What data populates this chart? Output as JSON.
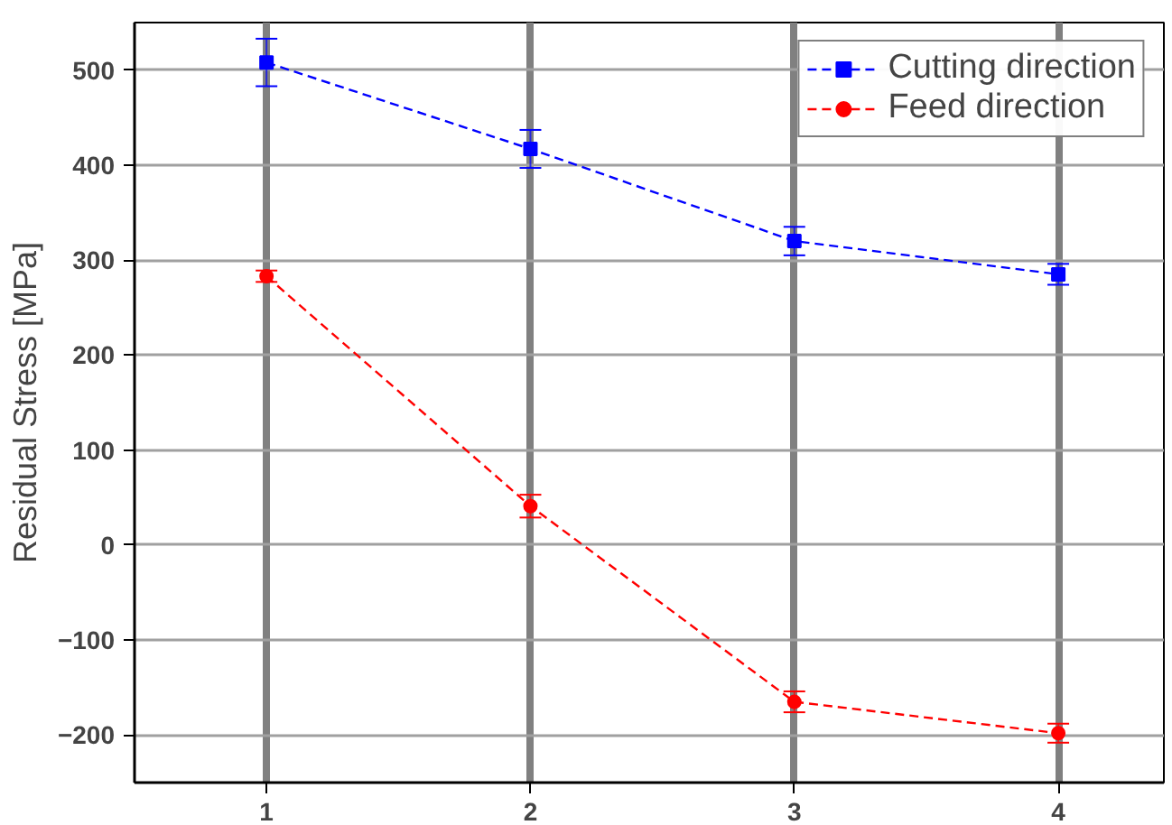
{
  "chart_data": {
    "type": "line",
    "ylabel": "Residual Stress [MPa]",
    "x": [
      1,
      2,
      3,
      4
    ],
    "xlim": [
      0.5,
      4.4
    ],
    "xticks": [
      1,
      2,
      3,
      4
    ],
    "ylim": [
      -250,
      550
    ],
    "yticks": [
      -200,
      -100,
      0,
      100,
      200,
      300,
      400,
      500
    ],
    "series": [
      {
        "name": "Cutting direction",
        "color": "#0000ff",
        "marker": "square",
        "values": [
          508,
          417,
          320,
          285
        ],
        "errors": [
          25,
          20,
          15,
          11
        ]
      },
      {
        "name": "Feed direction",
        "color": "#ff0000",
        "marker": "circle",
        "values": [
          283,
          41,
          -165,
          -198
        ],
        "errors": [
          6,
          12,
          11,
          10
        ]
      }
    ],
    "line_style": "dashed",
    "grid": true,
    "legend": "top right"
  }
}
